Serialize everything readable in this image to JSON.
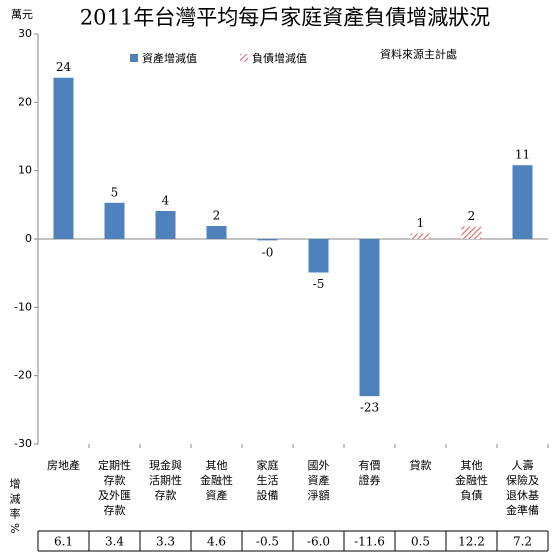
{
  "chart_data": {
    "type": "bar",
    "title": "2011年台灣平均每戶家庭資產負債增減狀況",
    "y_unit": "萬元",
    "source": "資料來源主計處",
    "categories": [
      "房地產",
      "定期性\n存款\n及外匯\n存款",
      "現金與\n活期性\n存款",
      "其他\n金融性\n資產",
      "家庭\n生活\n設備",
      "國外\n資產\n淨額",
      "有價\n證券",
      "貸款",
      "其他\n金融性\n負債",
      "人壽\n保險及\n退休基\n金準備"
    ],
    "series": [
      {
        "name": "資產增減值",
        "color": "#4f81bd",
        "values": [
          23.6,
          5.3,
          4.1,
          1.9,
          -0.2,
          -4.9,
          -23.0,
          null,
          null,
          10.8
        ],
        "value_labels": [
          "24",
          "5",
          "4",
          "2",
          "-0",
          "-5",
          "-23",
          null,
          null,
          "11"
        ]
      },
      {
        "name": "負債增減值",
        "color": "#e06666",
        "pattern": "diagonal-hatch",
        "values": [
          null,
          null,
          null,
          null,
          null,
          null,
          null,
          0.8,
          1.8,
          null
        ],
        "value_labels": [
          null,
          null,
          null,
          null,
          null,
          null,
          null,
          "1",
          "2",
          null
        ]
      }
    ],
    "ylim": [
      -30,
      30
    ],
    "yticks": [
      -30,
      -20,
      -10,
      0,
      10,
      20,
      30
    ],
    "grid": false,
    "growth_rate": {
      "label": "增減率%",
      "values": [
        "6.1",
        "3.4",
        "3.3",
        "4.6",
        "-0.5",
        "-6.0",
        "-11.6",
        "0.5",
        "12.2",
        "7.2"
      ]
    }
  }
}
